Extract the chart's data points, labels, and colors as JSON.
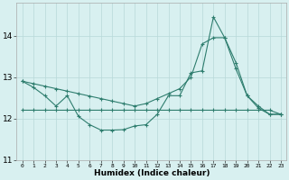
{
  "x": [
    0,
    1,
    2,
    3,
    4,
    5,
    6,
    7,
    8,
    9,
    10,
    11,
    12,
    13,
    14,
    15,
    16,
    17,
    18,
    19,
    20,
    21,
    22,
    23
  ],
  "y_jagged": [
    12.9,
    12.75,
    12.55,
    12.3,
    12.55,
    12.05,
    11.85,
    11.72,
    11.72,
    11.73,
    11.82,
    11.85,
    12.1,
    12.55,
    12.55,
    13.1,
    13.15,
    14.45,
    13.95,
    13.35,
    12.55,
    12.25,
    12.1,
    12.1
  ],
  "y_upper": [
    12.9,
    12.84,
    12.78,
    12.72,
    12.66,
    12.6,
    12.54,
    12.48,
    12.42,
    12.36,
    12.3,
    12.36,
    12.48,
    12.6,
    12.72,
    13.0,
    13.8,
    13.95,
    13.95,
    13.2,
    12.55,
    12.3,
    12.1,
    12.1
  ],
  "y_flat": [
    12.2,
    12.2,
    12.2,
    12.2,
    12.2,
    12.2,
    12.2,
    12.2,
    12.2,
    12.2,
    12.2,
    12.2,
    12.2,
    12.2,
    12.2,
    12.2,
    12.2,
    12.2,
    12.2,
    12.2,
    12.2,
    12.2,
    12.2,
    12.1
  ],
  "color": "#2e7d6e",
  "bg_color": "#d8f0f0",
  "grid_color": "#b8d8d8",
  "ylim": [
    11.0,
    14.8
  ],
  "xlim": [
    -0.5,
    23.5
  ],
  "yticks": [
    11,
    12,
    13,
    14
  ],
  "xticks": [
    0,
    1,
    2,
    3,
    4,
    5,
    6,
    7,
    8,
    9,
    10,
    11,
    12,
    13,
    14,
    15,
    16,
    17,
    18,
    19,
    20,
    21,
    22,
    23
  ],
  "xlabel": "Humidex (Indice chaleur)"
}
